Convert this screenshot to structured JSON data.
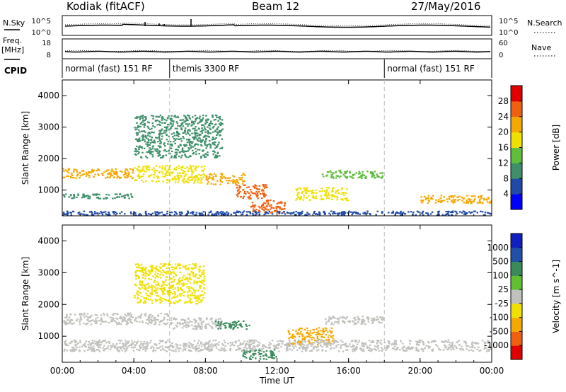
{
  "header": {
    "title": "Kodiak (fitACF)",
    "beam": "Beam 12",
    "date": "27/May/2016"
  },
  "summary": {
    "left_top_label": "N.Sky",
    "left_top_ticks": [
      "10^5",
      "10^0"
    ],
    "right_top_label": "N.Search",
    "right_top_ticks": [
      "10^5",
      "10^0"
    ],
    "left_mid_label_1": "Freq.",
    "left_mid_label_2": "[MHz]",
    "left_mid_ticks": [
      "18",
      "8"
    ],
    "right_mid_label": "Nave",
    "right_mid_ticks": [
      "60",
      "0"
    ],
    "cpid_label": "CPID",
    "cpid_segments": [
      {
        "label": "normal (fast) 151 RF",
        "start_hour": 0,
        "end_hour": 6
      },
      {
        "label": "themis 3300 RF",
        "start_hour": 6,
        "end_hour": 18
      },
      {
        "label": "normal (fast) 151 RF",
        "start_hour": 18,
        "end_hour": 24
      }
    ]
  },
  "chart_data": [
    {
      "type": "heatmap",
      "title": "",
      "xlabel": "",
      "ylabel": "Slant Range [km]",
      "xlim": [
        0,
        24
      ],
      "ylim": [
        180,
        4500
      ],
      "yticks": [
        1000,
        2000,
        3000,
        4000
      ],
      "colorbar": {
        "label": "Power [dB]",
        "tick_labels": [
          "4",
          "8",
          "12",
          "16",
          "20",
          "24",
          "28"
        ],
        "range": [
          0,
          32
        ],
        "colors": [
          "#0000ff",
          "#1f4aa8",
          "#3e8f6a",
          "#5fbe3c",
          "#f0e000",
          "#f7a800",
          "#f06010",
          "#e00000"
        ]
      },
      "echo_regions": [
        {
          "t_start": 0.0,
          "t_end": 4.0,
          "range_low": 1350,
          "range_high": 1700,
          "value": 22
        },
        {
          "t_start": 4.0,
          "t_end": 8.0,
          "range_low": 1200,
          "range_high": 1800,
          "value": 16
        },
        {
          "t_start": 8.0,
          "t_end": 10.3,
          "range_low": 1150,
          "range_high": 1550,
          "value": 20
        },
        {
          "t_start": 9.7,
          "t_end": 11.5,
          "range_low": 700,
          "range_high": 1200,
          "value": 26
        },
        {
          "t_start": 10.5,
          "t_end": 12.5,
          "range_low": 250,
          "range_high": 700,
          "value": 26
        },
        {
          "t_start": 13.0,
          "t_end": 16.0,
          "range_low": 650,
          "range_high": 1100,
          "value": 18
        },
        {
          "t_start": 14.5,
          "t_end": 18.0,
          "range_low": 1350,
          "range_high": 1650,
          "value": 12
        },
        {
          "t_start": 20.0,
          "t_end": 24.0,
          "range_low": 550,
          "range_high": 850,
          "value": 22
        },
        {
          "t_start": 0.0,
          "t_end": 4.0,
          "range_low": 700,
          "range_high": 900,
          "value": 8
        },
        {
          "t_start": 4.0,
          "t_end": 9.0,
          "range_low": 2000,
          "range_high": 3400,
          "value": 10
        },
        {
          "t_start": 0.0,
          "t_end": 24.0,
          "range_low": 180,
          "range_high": 350,
          "value": 6
        }
      ]
    },
    {
      "type": "heatmap",
      "title": "",
      "xlabel": "Time UT",
      "ylabel": "Slant Range [km]",
      "xlim": [
        0,
        24
      ],
      "ylim": [
        180,
        4500
      ],
      "xticks": [
        "00:00",
        "04:00",
        "08:00",
        "12:00",
        "16:00",
        "20:00",
        "00:00"
      ],
      "yticks": [
        1000,
        2000,
        3000,
        4000
      ],
      "colorbar": {
        "label": "Velocity [m s^-1]",
        "tick_labels": [
          "-1000",
          "-500",
          "-100",
          "-25",
          "25",
          "100",
          "500",
          "1000"
        ],
        "colors": [
          "#e00000",
          "#f06010",
          "#f7a800",
          "#f0e000",
          "#c0c0bc",
          "#60c030",
          "#3a8a5a",
          "#2050a8",
          "#1020c0"
        ]
      },
      "echo_regions": [
        {
          "t_start": 0.0,
          "t_end": 6.0,
          "range_low": 1350,
          "range_high": 1750,
          "value": 0
        },
        {
          "t_start": 6.0,
          "t_end": 9.0,
          "range_low": 1200,
          "range_high": 1600,
          "value": 0
        },
        {
          "t_start": 8.5,
          "t_end": 10.5,
          "range_low": 1200,
          "range_high": 1500,
          "value": 300
        },
        {
          "t_start": 10.0,
          "t_end": 12.0,
          "range_low": 250,
          "range_high": 600,
          "value": 150
        },
        {
          "t_start": 12.5,
          "t_end": 15.2,
          "range_low": 700,
          "range_high": 1300,
          "value": -300
        },
        {
          "t_start": 14.5,
          "t_end": 18.0,
          "range_low": 1350,
          "range_high": 1650,
          "value": 0
        },
        {
          "t_start": 0.0,
          "t_end": 24.0,
          "range_low": 500,
          "range_high": 900,
          "value": 0
        },
        {
          "t_start": 4.0,
          "t_end": 8.0,
          "range_low": 2000,
          "range_high": 3300,
          "value": -80
        }
      ]
    }
  ]
}
